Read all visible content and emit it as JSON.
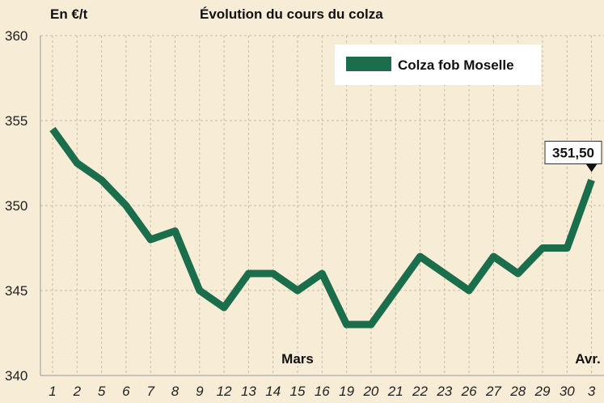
{
  "chart_data": {
    "type": "line",
    "title": "Évolution du cours du colza",
    "ylabel": "En €/t",
    "xlabel": "",
    "ylim": [
      340,
      360
    ],
    "yticks": [
      "360",
      "355",
      "350",
      "345",
      "340"
    ],
    "categories": [
      "1",
      "2",
      "5",
      "6",
      "7",
      "8",
      "9",
      "12",
      "13",
      "14",
      "15",
      "16",
      "19",
      "20",
      "21",
      "22",
      "23",
      "26",
      "27",
      "28",
      "29",
      "30",
      "3"
    ],
    "series": [
      {
        "name": "Colza fob Moselle",
        "color": "#1b6e4b",
        "values": [
          354.5,
          352.5,
          351.5,
          350,
          348,
          348.5,
          345,
          344,
          346,
          346,
          345,
          346,
          343,
          343,
          345,
          347,
          346,
          345,
          347,
          346,
          347.5,
          347.5,
          351.5
        ]
      }
    ],
    "month_labels": [
      {
        "text": "Mars",
        "index": 10
      },
      {
        "text": "Avr.",
        "index": 22
      }
    ],
    "callout": {
      "text": "351,50",
      "index": 22
    },
    "grid": true,
    "legend": "top-right"
  }
}
